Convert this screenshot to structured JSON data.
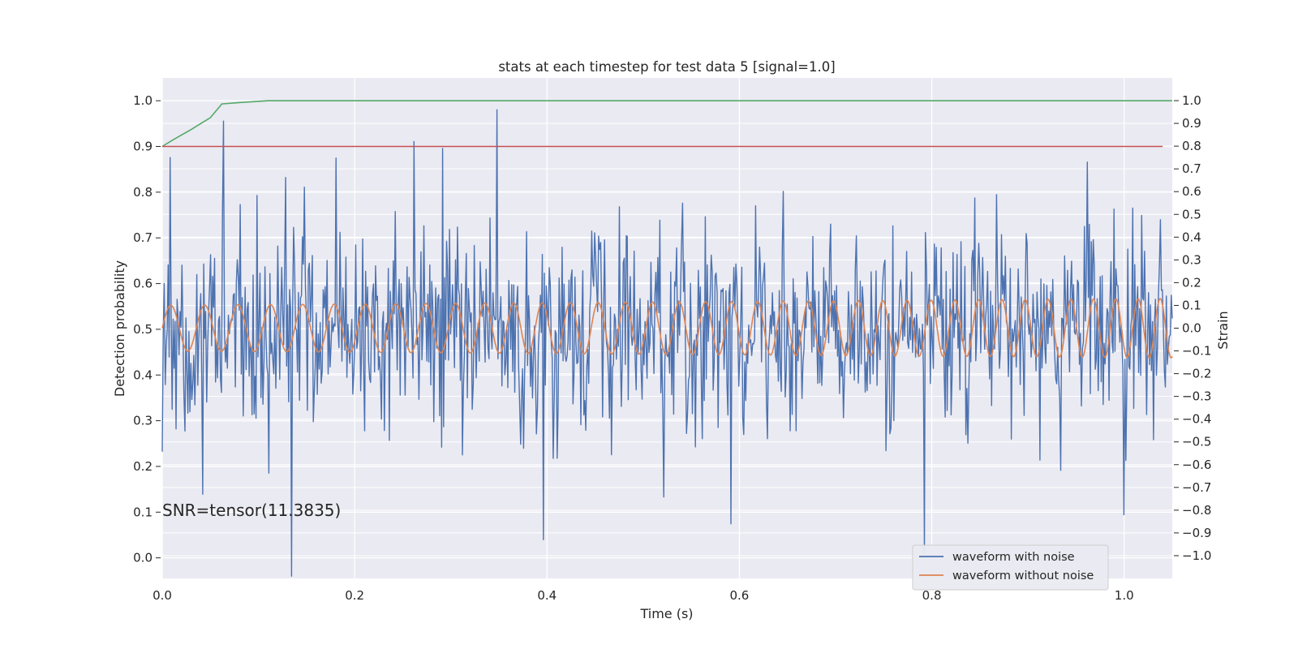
{
  "chart_data": {
    "type": "line",
    "title": "stats at each timestep for test data 5 [signal=1.0]",
    "xlabel": "Time (s)",
    "ylabel": "Detection probability",
    "ylabel_right": "Strain",
    "xlim": [
      0.0,
      1.05
    ],
    "ylim": [
      -0.045,
      1.05
    ],
    "ylim_right": [
      -1.1,
      1.1
    ],
    "x_ticks": [
      "0.0",
      "0.2",
      "0.4",
      "0.6",
      "0.8",
      "1.0"
    ],
    "y_ticks": [
      "0.0",
      "0.1",
      "0.2",
      "0.3",
      "0.4",
      "0.5",
      "0.6",
      "0.7",
      "0.8",
      "0.9",
      "1.0"
    ],
    "y_ticks_right": [
      "−1.0",
      "−0.9",
      "−0.8",
      "−0.7",
      "−0.6",
      "−0.5",
      "−0.4",
      "−0.3",
      "−0.2",
      "−0.1",
      "0.0",
      "0.1",
      "0.2",
      "0.3",
      "0.4",
      "0.5",
      "0.6",
      "0.7",
      "0.8",
      "0.9",
      "1.0"
    ],
    "grid": true,
    "legend_position": "lower-right",
    "annotation": "SNR=tensor(11.3835)",
    "series": [
      {
        "name": "waveform with noise",
        "axis": "right",
        "color": "#4c72b0",
        "noise_std": 0.22,
        "signal_amplitude": 0.09,
        "f0": 28,
        "f1": 44,
        "points": 1024,
        "spikes": [
          {
            "x": 0.008,
            "y": 0.75
          },
          {
            "x": 0.042,
            "y": -0.73
          },
          {
            "x": 0.064,
            "y": 0.91
          },
          {
            "x": 0.134,
            "y": -1.09
          },
          {
            "x": 0.262,
            "y": 0.82
          },
          {
            "x": 0.291,
            "y": 0.79
          },
          {
            "x": 0.348,
            "y": 0.96
          },
          {
            "x": 0.396,
            "y": -0.93
          },
          {
            "x": 0.591,
            "y": -0.86
          },
          {
            "x": 0.792,
            "y": -0.99
          },
          {
            "x": 0.962,
            "y": 0.73
          },
          {
            "x": 1.0,
            "y": -0.82
          }
        ]
      },
      {
        "name": "waveform without noise",
        "axis": "right",
        "color": "#dd8452",
        "amplitude": 0.1,
        "amplitude_end": 0.13,
        "f0": 28,
        "f1": 44
      },
      {
        "axis": "left",
        "color": "#55a868",
        "x": [
          0.0,
          0.01,
          0.02,
          0.03,
          0.04,
          0.05,
          0.062,
          0.08,
          0.11,
          1.05
        ],
        "y": [
          0.9,
          0.913,
          0.925,
          0.937,
          0.95,
          0.963,
          0.993,
          0.996,
          1.0,
          1.0
        ]
      },
      {
        "axis": "left",
        "color": "#c44e52",
        "x": [
          0.0,
          1.04
        ],
        "y": [
          0.9,
          0.9
        ]
      }
    ]
  }
}
